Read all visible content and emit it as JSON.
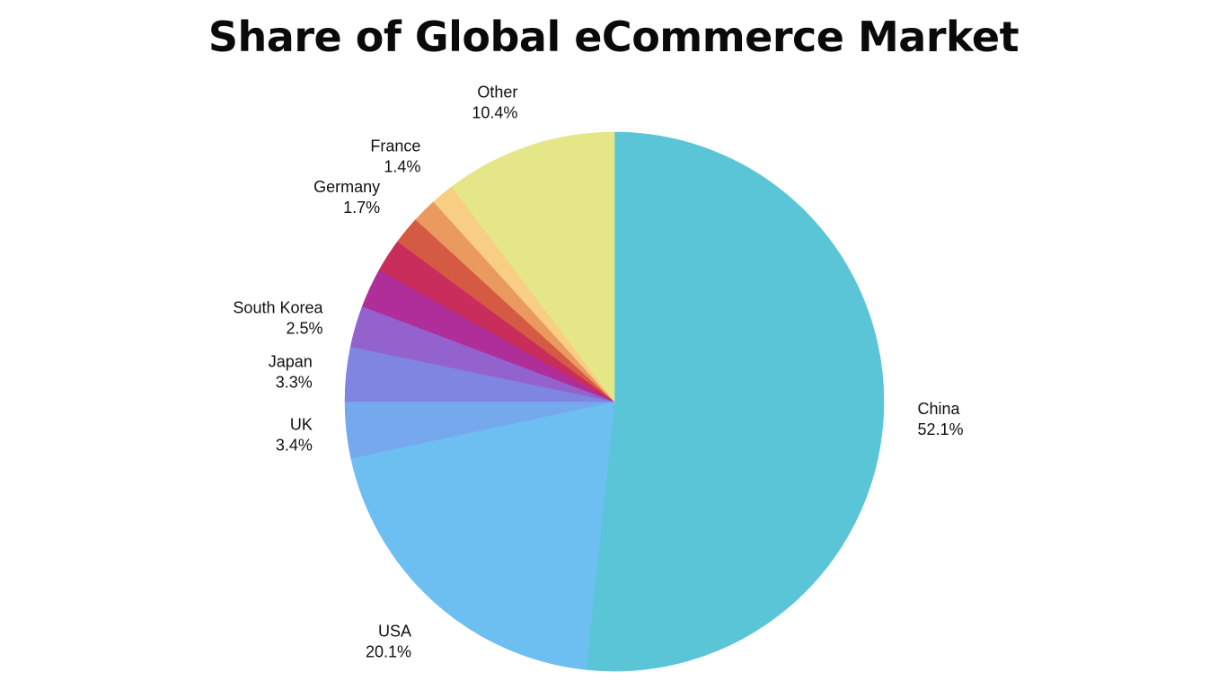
{
  "chart_data": {
    "type": "pie",
    "title": "Share of Global eCommerce Market",
    "slices": [
      {
        "label": "China",
        "value": 52.1,
        "display": "52.1%",
        "color": "#5bc5d8"
      },
      {
        "label": "USA",
        "value": 20.1,
        "display": "20.1%",
        "color": "#6dbff2"
      },
      {
        "label": "UK",
        "value": 3.4,
        "display": "3.4%",
        "color": "#76a8ee"
      },
      {
        "label": "Japan",
        "value": 3.3,
        "display": "3.3%",
        "color": "#7f85e0"
      },
      {
        "label": "South Korea",
        "value": 2.5,
        "display": "2.5%",
        "color": "#9462cc"
      },
      {
        "label": "",
        "value": 2.4,
        "display": "",
        "color": "#b02e9a"
      },
      {
        "label": "",
        "value": 2.0,
        "display": "",
        "color": "#c92d5c"
      },
      {
        "label": "Germany",
        "value": 1.7,
        "display": "1.7%",
        "color": "#d45a44"
      },
      {
        "label": "",
        "value": 1.5,
        "display": "",
        "color": "#ea9a5e"
      },
      {
        "label": "France",
        "value": 1.4,
        "display": "1.4%",
        "color": "#f8cd84"
      },
      {
        "label": "Other",
        "value": 10.4,
        "display": "10.4%",
        "color": "#e4e688"
      }
    ]
  }
}
